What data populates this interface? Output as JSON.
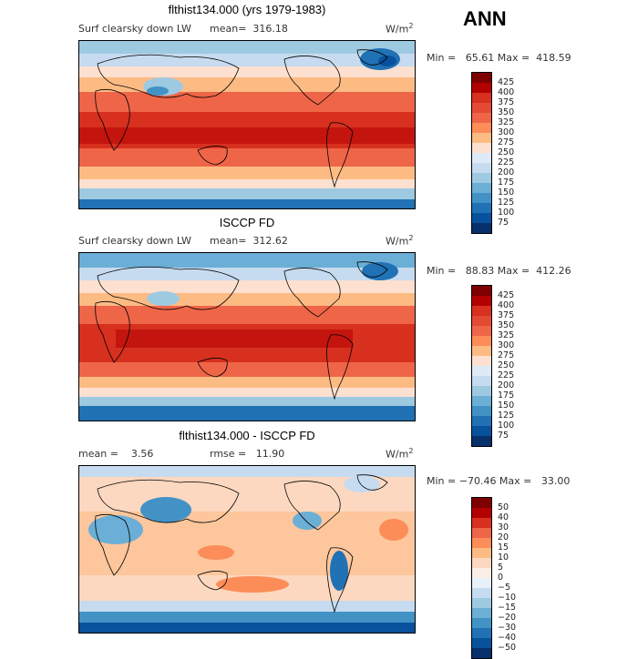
{
  "season": "ANN",
  "panels": [
    {
      "title": "flthist134.000 (yrs 1979-1983)",
      "field": "Surf clearsky down LW",
      "stat": "mean=  316.18",
      "units": "W/m",
      "units_exp": "2",
      "minmax": "Min =   65.61 Max =  418.59",
      "type": "abs",
      "colorbar": {
        "labels": [
          "425",
          "400",
          "375",
          "350",
          "325",
          "300",
          "275",
          "250",
          "225",
          "200",
          "175",
          "150",
          "125",
          "100",
          "75"
        ],
        "colors": [
          "#7f0000",
          "#b30000",
          "#d7301f",
          "#e34a33",
          "#ef6548",
          "#fc8d59",
          "#fdbb84",
          "#fde0cf",
          "#deebf7",
          "#c6dbef",
          "#9ecae1",
          "#6baed6",
          "#4292c6",
          "#2171b5",
          "#08519c",
          "#08306b"
        ]
      }
    },
    {
      "title": "ISCCP FD",
      "field": "Surf clearsky down LW",
      "stat": "mean=  312.62",
      "units": "W/m",
      "units_exp": "2",
      "minmax": "Min =   88.83 Max =  412.26",
      "type": "abs",
      "colorbar": {
        "labels": [
          "425",
          "400",
          "375",
          "350",
          "325",
          "300",
          "275",
          "250",
          "225",
          "200",
          "175",
          "150",
          "125",
          "100",
          "75"
        ],
        "colors": [
          "#7f0000",
          "#b30000",
          "#d7301f",
          "#e34a33",
          "#ef6548",
          "#fc8d59",
          "#fdbb84",
          "#fde0cf",
          "#deebf7",
          "#c6dbef",
          "#9ecae1",
          "#6baed6",
          "#4292c6",
          "#2171b5",
          "#08519c",
          "#08306b"
        ]
      }
    },
    {
      "title": "flthist134.000 - ISCCP FD",
      "field": "",
      "stat": "mean =    3.56",
      "stat2": "rmse =   11.90",
      "units": "W/m",
      "units_exp": "2",
      "minmax": "Min = −70.46 Max =   33.00",
      "type": "diff",
      "colorbar": {
        "labels": [
          "50",
          "40",
          "30",
          "20",
          "15",
          "10",
          "5",
          "0",
          "−5",
          "−10",
          "−15",
          "−20",
          "−30",
          "−40",
          "−50"
        ],
        "colors": [
          "#7f0000",
          "#b30000",
          "#d7301f",
          "#ef6548",
          "#fc8d59",
          "#fdbb84",
          "#fdd8c0",
          "#fbeee6",
          "#e8f0fa",
          "#c6dbef",
          "#9ecae1",
          "#6baed6",
          "#4292c6",
          "#2171b5",
          "#08519c",
          "#08306b"
        ]
      }
    }
  ]
}
